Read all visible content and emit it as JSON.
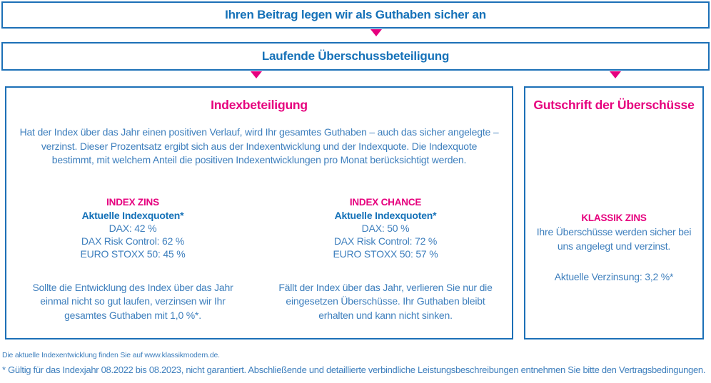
{
  "colors": {
    "blue_border": "#1c70b7",
    "blue_text": "#1571b8",
    "blue_body_text": "#3e7fbd",
    "pink_accent": "#e6007e"
  },
  "banners": {
    "top": "Ihren Beitrag legen wir als Guthaben sicher an",
    "mid": "Laufende Überschussbeteiligung"
  },
  "index_box": {
    "title": "Indexbeteiligung",
    "intro": "Hat der Index über das Jahr einen positiven Verlauf, wird Ihr gesamtes Guthaben – auch das sicher angelegte – verzinst. Dieser Prozentsatz ergibt sich aus der Indexentwicklung und der Indexquote. Die Indexquote bestimmt, mit welchem Anteil die positiven Indexentwicklungen pro Monat berücksichtigt werden.",
    "variants": [
      {
        "name": "INDEX ZINS",
        "subtitle": "Aktuelle Indexquoten*",
        "quotes": [
          "DAX: 42 %",
          "DAX Risk Control: 62 %",
          "EURO STOXX 50: 45 %"
        ],
        "description": "Sollte die Entwicklung des Index über das Jahr einmal nicht so gut laufen, verzinsen wir Ihr gesamtes Guthaben mit 1,0 %*."
      },
      {
        "name": "INDEX CHANCE",
        "subtitle": "Aktuelle Indexquoten*",
        "quotes": [
          "DAX: 50 %",
          "DAX Risk Control: 72 %",
          "EURO STOXX 50: 57 %"
        ],
        "description": "Fällt der Index über das Jahr, verlieren Sie nur die eingesetzen Überschüsse. Ihr Guthaben bleibt erhalten und kann nicht sinken."
      }
    ]
  },
  "credit_box": {
    "title": "Gutschrift der Überschüsse",
    "name": "KLASSIK ZINS",
    "description": "Ihre Überschüsse werden sicher bei uns angelegt und verzinst.",
    "rate_line": "Aktuelle Verzinsung: 3,2 %*"
  },
  "footnotes": {
    "index_link": "Die aktuelle Indexentwicklung finden Sie auf www.klassikmodern.de.",
    "disclaimer": "* Gültig für das Indexjahr 08.2022 bis 08.2023, nicht garantiert. Abschließende und detaillierte verbindliche Leistungsbeschreibungen entnehmen Sie bitte den Vertragsbedingungen."
  }
}
